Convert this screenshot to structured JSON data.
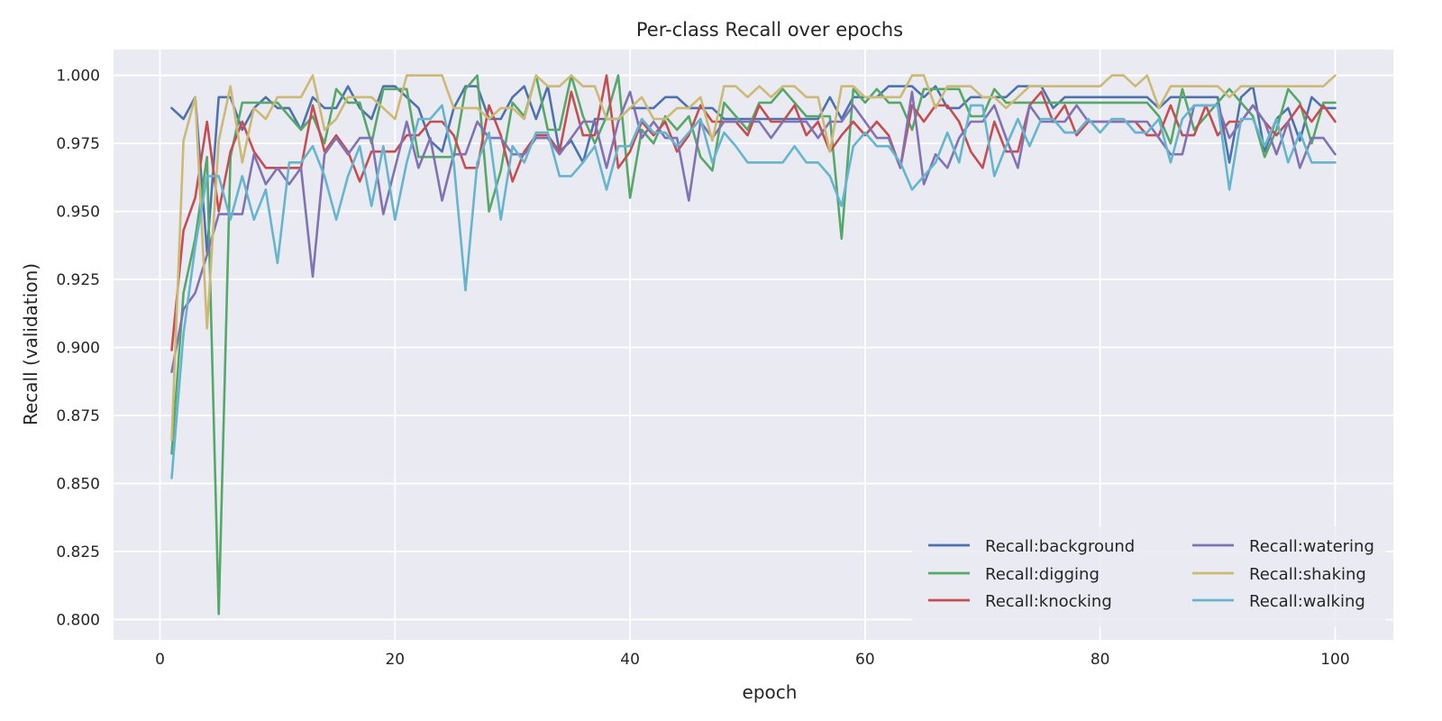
{
  "chart_data": {
    "type": "line",
    "title": "Per-class Recall over epochs",
    "xlabel": "epoch",
    "ylabel": "Recall (validation)",
    "xlim": [
      -3.95,
      104.95
    ],
    "ylim": [
      0.7925,
      1.0095
    ],
    "xticks": [
      0,
      20,
      40,
      60,
      80,
      100
    ],
    "yticks": [
      0.8,
      0.825,
      0.85,
      0.875,
      0.9,
      0.925,
      0.95,
      0.975,
      1.0
    ],
    "ytick_labels": [
      "0.800",
      "0.825",
      "0.850",
      "0.875",
      "0.900",
      "0.925",
      "0.950",
      "0.975",
      "1.000"
    ],
    "xtick_labels": [
      "0",
      "20",
      "40",
      "60",
      "80",
      "100"
    ],
    "grid": true,
    "legend": {
      "placement": "lower-right",
      "columns": 2
    },
    "x": [
      1,
      2,
      3,
      4,
      5,
      6,
      7,
      8,
      9,
      10,
      11,
      12,
      13,
      14,
      15,
      16,
      17,
      18,
      19,
      20,
      21,
      22,
      23,
      24,
      25,
      26,
      27,
      28,
      29,
      30,
      31,
      32,
      33,
      34,
      35,
      36,
      37,
      38,
      39,
      40,
      41,
      42,
      43,
      44,
      45,
      46,
      47,
      48,
      49,
      50,
      51,
      52,
      53,
      54,
      55,
      56,
      57,
      58,
      59,
      60,
      61,
      62,
      63,
      64,
      65,
      66,
      67,
      68,
      69,
      70,
      71,
      72,
      73,
      74,
      75,
      76,
      77,
      78,
      79,
      80,
      81,
      82,
      83,
      84,
      85,
      86,
      87,
      88,
      89,
      90,
      91,
      92,
      93,
      94,
      95,
      96,
      97,
      98,
      99,
      100
    ],
    "series": [
      {
        "name": "Recall:background",
        "color": "#4c72b0",
        "values": [
          0.988,
          0.984,
          0.992,
          0.935,
          0.992,
          0.992,
          0.98,
          0.988,
          0.992,
          0.988,
          0.988,
          0.98,
          0.992,
          0.988,
          0.988,
          0.996,
          0.988,
          0.984,
          0.996,
          0.996,
          0.992,
          0.988,
          0.976,
          0.972,
          0.988,
          0.996,
          0.996,
          0.984,
          0.984,
          0.992,
          0.996,
          0.984,
          0.996,
          0.972,
          0.976,
          0.968,
          0.984,
          0.984,
          0.984,
          0.988,
          0.988,
          0.988,
          0.992,
          0.992,
          0.988,
          0.988,
          0.988,
          0.984,
          0.984,
          0.984,
          0.984,
          0.984,
          0.984,
          0.984,
          0.984,
          0.984,
          0.992,
          0.984,
          0.992,
          0.992,
          0.992,
          0.996,
          0.996,
          0.996,
          0.992,
          0.996,
          0.988,
          0.988,
          0.992,
          0.992,
          0.992,
          0.992,
          0.996,
          0.996,
          0.996,
          0.988,
          0.992,
          0.992,
          0.992,
          0.992,
          0.992,
          0.992,
          0.992,
          0.992,
          0.988,
          0.992,
          0.992,
          0.992,
          0.992,
          0.992,
          0.968,
          0.992,
          0.996,
          0.972,
          0.984,
          0.988,
          0.976,
          0.992,
          0.988,
          0.988
        ]
      },
      {
        "name": "Recall:digging",
        "color": "#55a868",
        "values": [
          0.861,
          0.92,
          0.94,
          0.97,
          0.802,
          0.97,
          0.99,
          0.99,
          0.99,
          0.99,
          0.985,
          0.98,
          0.985,
          0.975,
          0.995,
          0.99,
          0.99,
          0.975,
          0.995,
          0.995,
          0.995,
          0.97,
          0.97,
          0.97,
          0.97,
          0.995,
          1.0,
          0.95,
          0.965,
          0.99,
          0.985,
          1.0,
          0.98,
          0.98,
          1.0,
          0.985,
          0.975,
          0.985,
          1.0,
          0.955,
          0.98,
          0.975,
          0.985,
          0.98,
          0.985,
          0.97,
          0.965,
          0.99,
          0.985,
          0.98,
          0.99,
          0.99,
          0.995,
          0.99,
          0.985,
          0.985,
          0.985,
          0.94,
          0.995,
          0.99,
          0.995,
          0.99,
          0.99,
          0.98,
          0.995,
          0.995,
          0.995,
          0.995,
          0.985,
          0.985,
          0.995,
          0.99,
          0.99,
          0.99,
          0.99,
          0.99,
          0.99,
          0.99,
          0.99,
          0.99,
          0.99,
          0.99,
          0.99,
          0.99,
          0.985,
          0.975,
          0.995,
          0.98,
          0.985,
          0.99,
          0.995,
          0.99,
          0.985,
          0.97,
          0.98,
          0.995,
          0.99,
          0.975,
          0.99,
          0.99
        ]
      },
      {
        "name": "Recall:knocking",
        "color": "#c44e52",
        "values": [
          0.899,
          0.943,
          0.955,
          0.983,
          0.95,
          0.972,
          0.983,
          0.972,
          0.966,
          0.966,
          0.966,
          0.966,
          0.989,
          0.972,
          0.978,
          0.972,
          0.961,
          0.972,
          0.972,
          0.972,
          0.978,
          0.978,
          0.983,
          0.983,
          0.978,
          0.966,
          0.966,
          0.989,
          0.978,
          0.961,
          0.972,
          0.978,
          0.978,
          0.972,
          0.994,
          0.978,
          0.978,
          1.0,
          0.966,
          0.972,
          0.983,
          0.978,
          0.983,
          0.972,
          0.978,
          0.989,
          0.983,
          0.983,
          0.983,
          0.978,
          0.989,
          0.983,
          0.983,
          0.989,
          0.978,
          0.983,
          0.972,
          0.978,
          0.983,
          0.978,
          0.983,
          0.978,
          0.966,
          0.989,
          0.983,
          0.989,
          0.989,
          0.983,
          0.972,
          0.966,
          0.983,
          0.972,
          0.972,
          0.989,
          0.994,
          0.983,
          0.989,
          0.978,
          0.983,
          0.983,
          0.983,
          0.983,
          0.983,
          0.978,
          0.978,
          0.989,
          0.978,
          0.978,
          0.989,
          0.978,
          0.983,
          0.983,
          0.989,
          0.983,
          0.978,
          0.983,
          0.989,
          0.983,
          0.989,
          0.983
        ]
      },
      {
        "name": "Recall:watering",
        "color": "#8172b3",
        "values": [
          0.891,
          0.914,
          0.92,
          0.934,
          0.949,
          0.949,
          0.949,
          0.971,
          0.96,
          0.966,
          0.96,
          0.966,
          0.926,
          0.971,
          0.977,
          0.971,
          0.977,
          0.977,
          0.949,
          0.966,
          0.983,
          0.966,
          0.977,
          0.954,
          0.971,
          0.971,
          0.983,
          0.977,
          0.977,
          0.971,
          0.971,
          0.977,
          0.977,
          0.971,
          0.977,
          0.983,
          0.983,
          0.966,
          0.983,
          0.994,
          0.977,
          0.983,
          0.977,
          0.977,
          0.954,
          0.983,
          0.977,
          0.983,
          0.983,
          0.983,
          0.983,
          0.977,
          0.983,
          0.983,
          0.983,
          0.977,
          0.983,
          0.983,
          0.989,
          0.983,
          0.977,
          0.977,
          0.966,
          0.994,
          0.96,
          0.971,
          0.966,
          0.977,
          0.983,
          0.983,
          0.989,
          0.977,
          0.966,
          0.989,
          0.983,
          0.983,
          0.983,
          0.989,
          0.983,
          0.983,
          0.983,
          0.983,
          0.983,
          0.983,
          0.977,
          0.971,
          0.971,
          0.989,
          0.989,
          0.989,
          0.977,
          0.983,
          0.989,
          0.983,
          0.971,
          0.983,
          0.966,
          0.977,
          0.977,
          0.971
        ]
      },
      {
        "name": "Recall:shaking",
        "color": "#ccb974",
        "values": [
          0.866,
          0.976,
          0.992,
          0.907,
          0.976,
          0.996,
          0.968,
          0.988,
          0.984,
          0.992,
          0.992,
          0.992,
          1.0,
          0.98,
          0.984,
          0.992,
          0.992,
          0.992,
          0.988,
          0.984,
          1.0,
          1.0,
          1.0,
          1.0,
          0.988,
          0.988,
          0.988,
          0.984,
          0.988,
          0.988,
          0.984,
          1.0,
          0.996,
          0.996,
          1.0,
          0.996,
          0.996,
          0.984,
          0.984,
          0.988,
          0.992,
          0.984,
          0.984,
          0.988,
          0.988,
          0.992,
          0.976,
          0.996,
          0.996,
          0.992,
          0.996,
          0.992,
          0.996,
          0.996,
          0.992,
          0.992,
          0.972,
          0.996,
          0.996,
          0.992,
          0.992,
          0.992,
          0.992,
          1.0,
          1.0,
          0.988,
          0.996,
          0.996,
          0.996,
          0.992,
          0.992,
          0.988,
          0.992,
          0.996,
          0.996,
          0.996,
          0.996,
          0.996,
          0.996,
          0.996,
          1.0,
          1.0,
          0.996,
          1.0,
          0.988,
          0.996,
          0.996,
          0.996,
          0.996,
          0.996,
          0.992,
          0.996,
          0.996,
          0.996,
          0.996,
          0.996,
          0.996,
          0.996,
          0.996,
          1.0
        ]
      },
      {
        "name": "Recall:walking",
        "color": "#64b5cd",
        "values": [
          0.852,
          0.905,
          0.937,
          0.963,
          0.963,
          0.947,
          0.963,
          0.947,
          0.958,
          0.931,
          0.968,
          0.968,
          0.974,
          0.963,
          0.947,
          0.963,
          0.974,
          0.952,
          0.974,
          0.947,
          0.968,
          0.984,
          0.984,
          0.989,
          0.968,
          0.921,
          0.968,
          0.979,
          0.947,
          0.974,
          0.968,
          0.979,
          0.979,
          0.963,
          0.963,
          0.968,
          0.974,
          0.958,
          0.974,
          0.974,
          0.984,
          0.979,
          0.979,
          0.974,
          0.979,
          0.984,
          0.968,
          0.979,
          0.974,
          0.968,
          0.968,
          0.968,
          0.968,
          0.974,
          0.968,
          0.968,
          0.963,
          0.952,
          0.974,
          0.979,
          0.974,
          0.974,
          0.968,
          0.958,
          0.963,
          0.968,
          0.979,
          0.968,
          0.989,
          0.989,
          0.963,
          0.974,
          0.984,
          0.974,
          0.984,
          0.984,
          0.979,
          0.979,
          0.984,
          0.979,
          0.984,
          0.984,
          0.979,
          0.979,
          0.984,
          0.968,
          0.984,
          0.989,
          0.989,
          0.989,
          0.958,
          0.984,
          0.984,
          0.974,
          0.984,
          0.968,
          0.979,
          0.968,
          0.968,
          0.968
        ]
      }
    ]
  }
}
